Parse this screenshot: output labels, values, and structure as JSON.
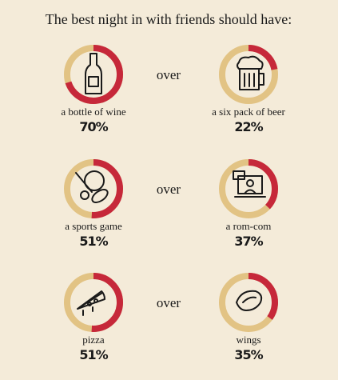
{
  "title": "The best night in with friends should have:",
  "ring_range": [
    0,
    100
  ],
  "colors": {
    "track": "#e2c384",
    "fill": "#c6283a"
  },
  "pairs": [
    {
      "left": {
        "label": "a bottle of wine",
        "value": 70,
        "value_label": "70%"
      },
      "connector": "over",
      "right": {
        "label": "a six pack of beer",
        "value": 22,
        "value_label": "22%"
      }
    },
    {
      "left": {
        "label": "a sports game",
        "value": 51,
        "value_label": "51%"
      },
      "connector": "over",
      "right": {
        "label": "a rom-com",
        "value": 37,
        "value_label": "37%"
      }
    },
    {
      "left": {
        "label": "pizza",
        "value": 51,
        "value_label": "51%"
      },
      "connector": "over",
      "right": {
        "label": "wings",
        "value": 35,
        "value_label": "35%"
      }
    }
  ]
}
